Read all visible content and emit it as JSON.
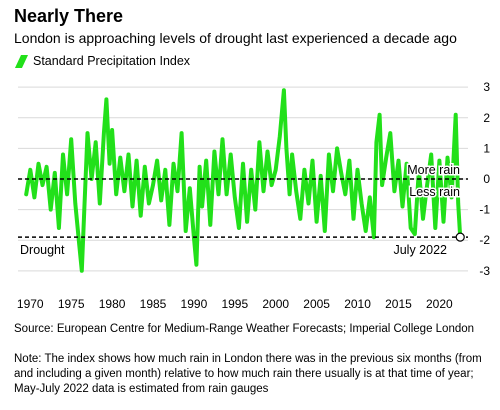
{
  "header": {
    "title": "Nearly There",
    "subtitle": "London is approaching levels of drought last experienced a decade ago"
  },
  "legend": {
    "label": "Standard Precipitation Index",
    "color": "#22e01a"
  },
  "annotations": {
    "more_rain": "More rain",
    "less_rain": "Less rain",
    "drought": "Drought",
    "july_2022": "July 2022"
  },
  "footer": {
    "source": "Source: European Centre for Medium-Range Weather Forecasts; Imperial College London",
    "note": "Note: The index shows how much rain in London there was in the previous six months (from and including a given month) relative to how much rain there usually is at that time of year; May-July 2022 data is estimated from rain gauges"
  },
  "chart_data": {
    "type": "line",
    "title": "Nearly There",
    "xlabel": "",
    "ylabel": "",
    "xlim": [
      1968.5,
      2023.5
    ],
    "ylim": [
      -3.3,
      3.3
    ],
    "x_ticks": [
      1970,
      1975,
      1980,
      1985,
      1990,
      1995,
      2000,
      2005,
      2010,
      2015,
      2020
    ],
    "y_ticks": [
      3,
      2,
      1,
      0,
      -1,
      -2,
      -3
    ],
    "grid": "horizontal",
    "reference_lines": [
      {
        "y": 0,
        "style": "dashed",
        "labels": [
          "More rain",
          "Less rain"
        ]
      },
      {
        "y": -1.9,
        "style": "dashed",
        "label": "Drought"
      }
    ],
    "series": [
      {
        "name": "Standard Precipitation Index",
        "color": "#22e01a",
        "x": [
          1969.5,
          1970.0,
          1970.5,
          1971.0,
          1971.5,
          1972.0,
          1972.5,
          1973.0,
          1973.5,
          1974.0,
          1974.5,
          1975.0,
          1975.5,
          1976.0,
          1976.3,
          1976.6,
          1977.0,
          1977.5,
          1978.0,
          1978.5,
          1979.0,
          1979.3,
          1979.7,
          1980.0,
          1980.5,
          1981.0,
          1981.5,
          1982.0,
          1982.5,
          1983.0,
          1983.5,
          1984.0,
          1984.5,
          1985.0,
          1985.5,
          1986.0,
          1986.5,
          1987.0,
          1987.5,
          1988.0,
          1988.5,
          1989.0,
          1989.5,
          1990.0,
          1990.3,
          1990.7,
          1991.0,
          1991.5,
          1992.0,
          1992.5,
          1993.0,
          1993.5,
          1994.0,
          1994.5,
          1995.0,
          1995.5,
          1996.0,
          1996.5,
          1997.0,
          1997.5,
          1998.0,
          1998.5,
          1999.0,
          1999.5,
          2000.0,
          2000.5,
          2001.0,
          2001.3,
          2001.7,
          2002.0,
          2002.5,
          2003.0,
          2003.5,
          2004.0,
          2004.5,
          2005.0,
          2005.5,
          2006.0,
          2006.5,
          2007.0,
          2007.5,
          2008.0,
          2008.5,
          2009.0,
          2009.5,
          2010.0,
          2010.5,
          2011.0,
          2011.5,
          2012.0,
          2012.3,
          2012.7,
          2013.0,
          2013.5,
          2014.0,
          2014.5,
          2015.0,
          2015.5,
          2016.0,
          2016.5,
          2017.0,
          2017.5,
          2018.0,
          2018.5,
          2019.0,
          2019.5,
          2020.0,
          2020.5,
          2021.0,
          2021.5,
          2022.0,
          2022.3,
          2022.55
        ],
        "values": [
          -0.5,
          0.3,
          -0.6,
          0.5,
          -0.2,
          0.4,
          -1.0,
          0.2,
          -1.6,
          0.8,
          -0.5,
          1.3,
          -0.8,
          -2.2,
          -3.0,
          -1.0,
          1.5,
          0.0,
          1.2,
          -0.8,
          1.5,
          2.6,
          0.5,
          1.6,
          -0.5,
          0.7,
          -0.4,
          0.8,
          -0.9,
          0.6,
          -1.2,
          0.4,
          -0.8,
          -0.2,
          0.6,
          -0.7,
          0.3,
          -1.5,
          0.5,
          -0.4,
          1.5,
          -1.7,
          -0.3,
          -1.9,
          -2.8,
          0.4,
          -0.9,
          0.6,
          -1.5,
          0.9,
          -0.5,
          1.3,
          -0.5,
          0.8,
          -0.6,
          -1.6,
          0.5,
          -1.4,
          0.3,
          -1.0,
          1.2,
          -0.4,
          0.9,
          -0.2,
          0.3,
          1.4,
          2.9,
          1.0,
          -0.5,
          0.8,
          -0.4,
          -1.3,
          0.3,
          -0.8,
          0.6,
          -1.4,
          0.1,
          -1.7,
          0.8,
          -0.4,
          1.0,
          0.2,
          -0.5,
          0.6,
          -1.3,
          0.3,
          -0.8,
          -1.7,
          -0.6,
          -1.9,
          1.2,
          2.1,
          -0.2,
          0.7,
          1.5,
          -0.4,
          0.6,
          -0.9,
          0.5,
          -1.6,
          -1.8,
          0.3,
          -1.3,
          -0.2,
          0.8,
          -1.6,
          0.6,
          -1.4,
          0.7,
          -0.6,
          2.1,
          -0.8,
          -1.9
        ]
      }
    ],
    "highlight_point": {
      "x": 2022.55,
      "y": -1.9,
      "label": "July 2022"
    }
  }
}
